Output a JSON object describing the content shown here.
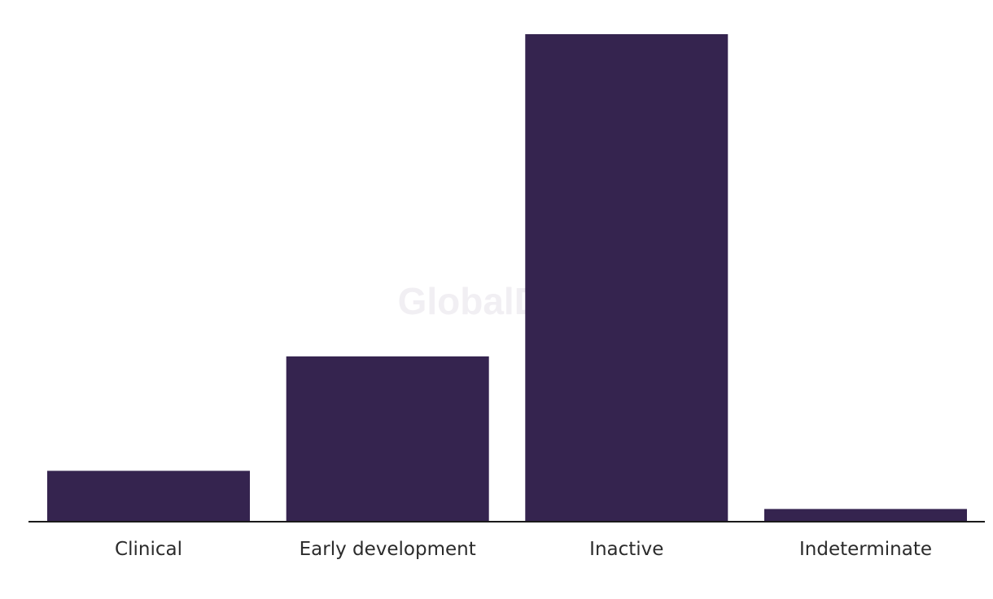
{
  "chart_data": {
    "type": "bar",
    "categories": [
      "Clinical",
      "Early development",
      "Inactive",
      "Indeterminate"
    ],
    "values": [
      12,
      39,
      115,
      3
    ],
    "ylim": [
      0,
      115
    ],
    "grid": false,
    "bar_color": "#35244f",
    "axis_color": "#1a1a1a"
  },
  "watermark": "GlobalData"
}
